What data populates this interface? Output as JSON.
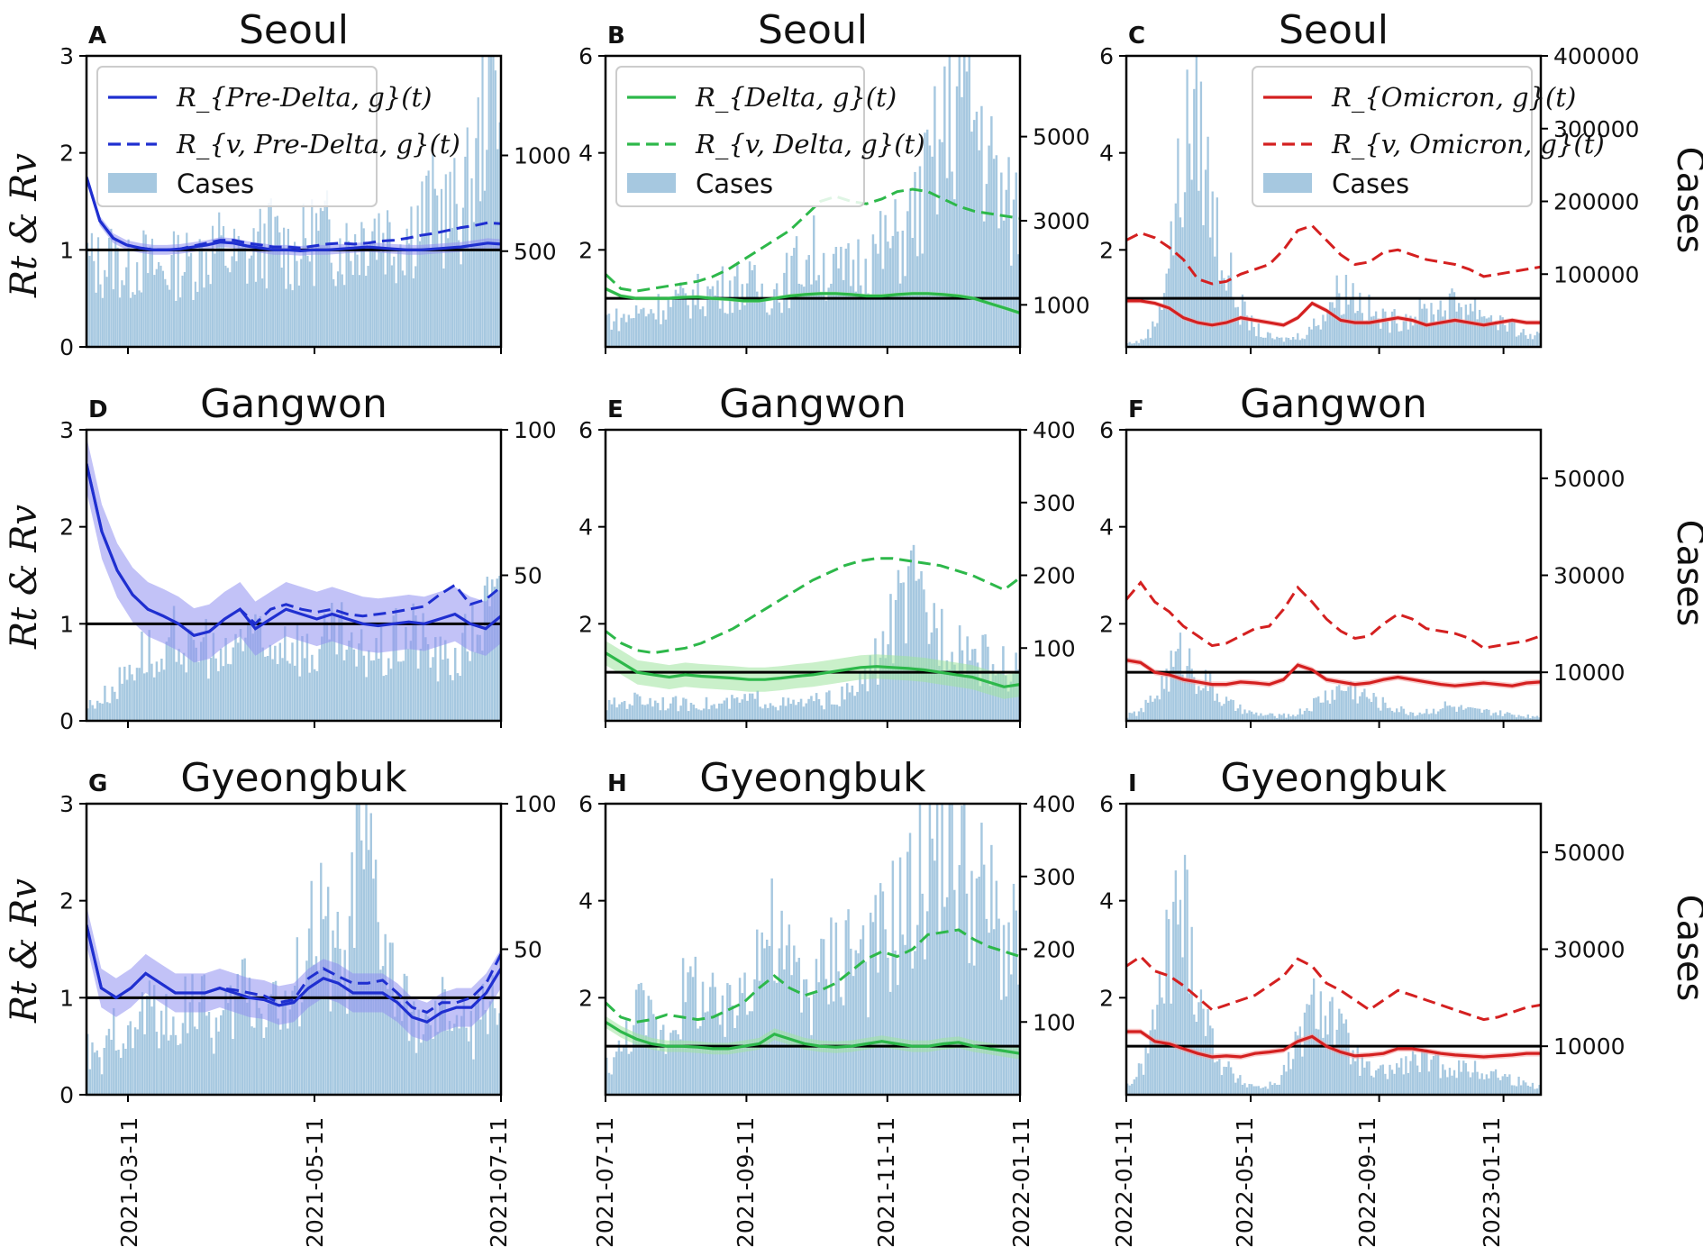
{
  "figure": {
    "ylabel_left": "Rt & Rv",
    "ylabel_right": "Cases",
    "date_labels_rows": [
      "2021-03-11",
      "2021-05-11",
      "2021-07-11",
      "2021-07-11",
      "2021-09-11",
      "2021-11-11",
      "2022-01-11",
      "2022-01-11",
      "2022-05-11",
      "2022-09-11",
      "2023-01-11"
    ]
  },
  "legend": {
    "predelta": {
      "r": "R_{Pre-Delta, g}(t)",
      "rv": "R_{v, Pre-Delta, g}(t)",
      "cases": "Cases"
    },
    "delta": {
      "r": "R_{Delta, g}(t)",
      "rv": "R_{v, Delta, g}(t)",
      "cases": "Cases"
    },
    "omicron": {
      "r": "R_{Omicron, g}(t)",
      "rv": "R_{v, Omicron, g}(t)",
      "cases": "Cases"
    }
  },
  "colors": {
    "predelta": "#1f2fd0",
    "delta": "#2db84a",
    "omicron": "#d42020",
    "cases": "#a6c8e0",
    "ci_predelta": "#8f8ff0",
    "ci_delta": "#9fe39f",
    "ci_omicron": "#f4a0a0"
  },
  "chart_data": [
    {
      "id": "A",
      "title": "Seoul",
      "type": "line+bar",
      "variant": "predelta",
      "ylim": [
        0,
        3
      ],
      "yticks": [
        0,
        1,
        2,
        3
      ],
      "y2ticks": [
        500,
        1000
      ],
      "y2lim": [
        0,
        1520
      ],
      "r": [
        1.75,
        1.3,
        1.12,
        1.05,
        1.02,
        1.0,
        1.0,
        1.01,
        1.03,
        1.05,
        1.08,
        1.07,
        1.04,
        1.02,
        1.0,
        1.0,
        0.99,
        1.0,
        1.0,
        1.01,
        1.02,
        1.03,
        1.02,
        1.01,
        1.0,
        1.0,
        1.01,
        1.02,
        1.03,
        1.05,
        1.07,
        1.06
      ],
      "rv": [
        1.75,
        1.3,
        1.12,
        1.05,
        1.02,
        1.0,
        1.0,
        1.01,
        1.04,
        1.07,
        1.1,
        1.1,
        1.07,
        1.05,
        1.03,
        1.03,
        1.02,
        1.04,
        1.06,
        1.07,
        1.06,
        1.07,
        1.09,
        1.1,
        1.12,
        1.15,
        1.17,
        1.2,
        1.23,
        1.25,
        1.28,
        1.27
      ],
      "ci": 0.05,
      "cases": [
        450,
        420,
        470,
        380,
        460,
        410,
        390,
        440,
        430,
        480,
        520,
        470,
        440,
        500,
        560,
        520,
        480,
        540,
        600,
        560,
        520,
        580,
        640,
        600,
        560,
        620,
        690,
        720,
        680,
        740,
        900,
        1600
      ]
    },
    {
      "id": "B",
      "title": "Seoul",
      "type": "line+bar",
      "variant": "delta",
      "ylim": [
        0,
        6
      ],
      "yticks": [
        2,
        4,
        6
      ],
      "y2ticks": [
        1000,
        3000,
        5000
      ],
      "y2lim": [
        0,
        6920
      ],
      "r": [
        1.2,
        1.05,
        1.0,
        1.0,
        1.0,
        1.02,
        1.03,
        1.0,
        0.98,
        0.95,
        0.95,
        1.0,
        1.05,
        1.08,
        1.1,
        1.1,
        1.08,
        1.05,
        1.05,
        1.08,
        1.1,
        1.1,
        1.08,
        1.05,
        1.0,
        0.9,
        0.8,
        0.7
      ],
      "rv": [
        1.5,
        1.2,
        1.15,
        1.2,
        1.25,
        1.3,
        1.35,
        1.45,
        1.6,
        1.8,
        2.0,
        2.2,
        2.4,
        2.7,
        3.0,
        3.1,
        3.0,
        2.95,
        3.05,
        3.2,
        3.25,
        3.2,
        3.05,
        2.9,
        2.8,
        2.75,
        2.7,
        2.65
      ],
      "ci": 0.04,
      "cases": [
        700,
        650,
        800,
        900,
        1000,
        1100,
        1200,
        1300,
        1400,
        1500,
        1400,
        1300,
        1500,
        2000,
        2200,
        1800,
        1700,
        2000,
        2200,
        2400,
        2600,
        3200,
        4200,
        5200,
        6200,
        5400,
        4200,
        3200
      ]
    },
    {
      "id": "C",
      "title": "Seoul",
      "type": "line+bar",
      "variant": "omicron",
      "ylim": [
        0,
        6
      ],
      "yticks": [
        2,
        4,
        6
      ],
      "y2ticks": [
        100000,
        200000,
        300000,
        400000
      ],
      "y2lim": [
        0,
        400000
      ],
      "r": [
        0.95,
        0.95,
        0.9,
        0.8,
        0.6,
        0.5,
        0.45,
        0.5,
        0.6,
        0.55,
        0.5,
        0.45,
        0.6,
        0.9,
        0.75,
        0.55,
        0.5,
        0.5,
        0.55,
        0.6,
        0.55,
        0.45,
        0.5,
        0.55,
        0.5,
        0.45,
        0.5,
        0.55,
        0.5,
        0.5
      ],
      "rv": [
        2.2,
        2.35,
        2.25,
        2.05,
        1.8,
        1.4,
        1.3,
        1.35,
        1.5,
        1.6,
        1.7,
        2.0,
        2.4,
        2.5,
        2.2,
        1.9,
        1.7,
        1.75,
        1.95,
        2.0,
        1.9,
        1.8,
        1.75,
        1.7,
        1.6,
        1.45,
        1.5,
        1.55,
        1.6,
        1.65
      ],
      "ci": 0.05,
      "cases": [
        5000,
        8000,
        30000,
        120000,
        250000,
        340000,
        200000,
        120000,
        60000,
        30000,
        15000,
        10000,
        12000,
        20000,
        40000,
        70000,
        80000,
        60000,
        40000,
        35000,
        40000,
        45000,
        50000,
        55000,
        60000,
        55000,
        45000,
        35000,
        25000,
        15000
      ]
    },
    {
      "id": "D",
      "title": "Gangwon",
      "type": "line+bar",
      "variant": "predelta",
      "ylim": [
        0,
        3
      ],
      "yticks": [
        0,
        1,
        2,
        3
      ],
      "y2ticks": [
        50,
        100
      ],
      "y2lim": [
        0,
        100
      ],
      "r": [
        2.65,
        1.95,
        1.55,
        1.3,
        1.15,
        1.08,
        1.0,
        0.88,
        0.92,
        1.05,
        1.15,
        0.95,
        1.05,
        1.15,
        1.1,
        1.05,
        1.1,
        1.05,
        1.0,
        0.98,
        1.0,
        1.02,
        1.0,
        1.05,
        1.1,
        1.0,
        0.95,
        1.08
      ],
      "rv": [
        2.65,
        1.95,
        1.55,
        1.3,
        1.15,
        1.08,
        1.0,
        0.88,
        0.92,
        1.05,
        1.15,
        1.0,
        1.15,
        1.2,
        1.15,
        1.12,
        1.15,
        1.1,
        1.08,
        1.1,
        1.12,
        1.15,
        1.18,
        1.3,
        1.4,
        1.2,
        1.25,
        1.38
      ],
      "ci": 0.28,
      "cases": [
        5,
        8,
        12,
        20,
        25,
        15,
        30,
        22,
        28,
        18,
        25,
        35,
        20,
        30,
        28,
        22,
        26,
        30,
        20,
        25,
        22,
        28,
        30,
        25,
        20,
        22,
        30,
        38
      ]
    },
    {
      "id": "E",
      "title": "Gangwon",
      "type": "line+bar",
      "variant": "delta",
      "ylim": [
        0,
        6
      ],
      "yticks": [
        2,
        4,
        6
      ],
      "y2ticks": [
        100,
        200,
        300,
        400
      ],
      "y2lim": [
        0,
        400
      ],
      "r": [
        1.4,
        1.2,
        1.0,
        0.95,
        0.9,
        0.95,
        0.92,
        0.9,
        0.88,
        0.85,
        0.85,
        0.88,
        0.92,
        0.95,
        1.0,
        1.05,
        1.1,
        1.12,
        1.1,
        1.08,
        1.05,
        1.0,
        0.95,
        0.9,
        0.8,
        0.7,
        0.75
      ],
      "rv": [
        1.85,
        1.6,
        1.45,
        1.4,
        1.45,
        1.5,
        1.6,
        1.75,
        1.9,
        2.1,
        2.3,
        2.5,
        2.7,
        2.9,
        3.05,
        3.2,
        3.3,
        3.35,
        3.35,
        3.3,
        3.25,
        3.2,
        3.1,
        3.0,
        2.85,
        2.7,
        2.95
      ],
      "ci": 0.25,
      "cases": [
        20,
        25,
        30,
        28,
        25,
        22,
        26,
        20,
        24,
        28,
        30,
        25,
        22,
        25,
        28,
        30,
        40,
        60,
        100,
        150,
        170,
        140,
        120,
        110,
        90,
        80,
        70
      ]
    },
    {
      "id": "F",
      "title": "Gangwon",
      "type": "line+bar",
      "variant": "omicron",
      "ylim": [
        0,
        6
      ],
      "yticks": [
        2,
        4,
        6
      ],
      "y2ticks": [
        10000,
        30000,
        50000
      ],
      "y2lim": [
        0,
        60000
      ],
      "r": [
        1.25,
        1.2,
        1.0,
        0.95,
        0.85,
        0.8,
        0.75,
        0.75,
        0.8,
        0.78,
        0.75,
        0.85,
        1.15,
        1.05,
        0.85,
        0.8,
        0.75,
        0.78,
        0.85,
        0.9,
        0.85,
        0.8,
        0.75,
        0.72,
        0.75,
        0.78,
        0.75,
        0.72,
        0.78,
        0.8
      ],
      "rv": [
        2.5,
        2.85,
        2.45,
        2.25,
        1.95,
        1.75,
        1.55,
        1.6,
        1.75,
        1.9,
        1.95,
        2.3,
        2.75,
        2.45,
        2.1,
        1.85,
        1.7,
        1.75,
        2.0,
        2.2,
        2.1,
        1.9,
        1.85,
        1.8,
        1.7,
        1.5,
        1.55,
        1.6,
        1.65,
        1.75
      ],
      "ci": 0.06,
      "cases": [
        1000,
        2000,
        5000,
        10000,
        14000,
        10000,
        7000,
        4000,
        2500,
        1500,
        1200,
        1000,
        1200,
        2500,
        4500,
        6000,
        7000,
        5500,
        4000,
        3000,
        2000,
        1500,
        2200,
        3000,
        2500,
        2000,
        1800,
        1500,
        1200,
        1000
      ]
    },
    {
      "id": "G",
      "title": "Gyeongbuk",
      "type": "line+bar",
      "variant": "predelta",
      "ylim": [
        0,
        3
      ],
      "yticks": [
        0,
        1,
        2,
        3
      ],
      "y2ticks": [
        50,
        100
      ],
      "y2lim": [
        0,
        100
      ],
      "r": [
        1.75,
        1.1,
        1.0,
        1.1,
        1.25,
        1.15,
        1.05,
        1.05,
        1.05,
        1.1,
        1.05,
        1.0,
        0.98,
        0.92,
        0.95,
        1.1,
        1.2,
        1.15,
        1.05,
        1.05,
        1.05,
        0.95,
        0.8,
        0.75,
        0.85,
        0.9,
        0.9,
        1.05,
        1.3
      ],
      "rv": [
        1.75,
        1.1,
        1.0,
        1.1,
        1.25,
        1.15,
        1.05,
        1.05,
        1.05,
        1.1,
        1.08,
        1.05,
        1.02,
        0.95,
        0.98,
        1.2,
        1.3,
        1.22,
        1.15,
        1.15,
        1.18,
        1.05,
        0.9,
        0.85,
        0.95,
        0.95,
        1.0,
        1.15,
        1.45
      ],
      "ci": 0.2,
      "cases": [
        15,
        10,
        25,
        18,
        30,
        28,
        20,
        35,
        30,
        22,
        28,
        40,
        30,
        35,
        25,
        45,
        60,
        50,
        40,
        80,
        70,
        45,
        30,
        25,
        20,
        30,
        25,
        20,
        35
      ]
    },
    {
      "id": "H",
      "title": "Gyeongbuk",
      "type": "line+bar",
      "variant": "delta",
      "ylim": [
        0,
        6
      ],
      "yticks": [
        2,
        4,
        6
      ],
      "y2ticks": [
        100,
        200,
        300,
        400
      ],
      "y2lim": [
        0,
        400
      ],
      "r": [
        1.5,
        1.3,
        1.15,
        1.05,
        1.0,
        1.0,
        0.98,
        0.95,
        0.95,
        1.0,
        1.05,
        1.25,
        1.15,
        1.05,
        1.0,
        0.98,
        1.0,
        1.05,
        1.1,
        1.05,
        1.0,
        1.0,
        1.05,
        1.08,
        1.0,
        0.95,
        0.9,
        0.85
      ],
      "rv": [
        1.9,
        1.6,
        1.5,
        1.55,
        1.65,
        1.6,
        1.55,
        1.6,
        1.75,
        1.9,
        2.2,
        2.45,
        2.2,
        2.05,
        2.15,
        2.3,
        2.55,
        2.8,
        2.95,
        2.85,
        3.0,
        3.3,
        3.35,
        3.4,
        3.2,
        3.05,
        2.95,
        2.85
      ],
      "ci": 0.12,
      "cases": [
        40,
        60,
        120,
        100,
        80,
        130,
        150,
        120,
        100,
        140,
        200,
        220,
        180,
        160,
        140,
        180,
        210,
        200,
        190,
        230,
        250,
        280,
        360,
        380,
        320,
        280,
        250,
        200
      ]
    },
    {
      "id": "I",
      "title": "Gyeongbuk",
      "type": "line+bar",
      "variant": "omicron",
      "ylim": [
        0,
        6
      ],
      "yticks": [
        2,
        4,
        6
      ],
      "y2ticks": [
        10000,
        30000,
        50000
      ],
      "y2lim": [
        0,
        60000
      ],
      "r": [
        1.3,
        1.3,
        1.1,
        1.05,
        0.95,
        0.85,
        0.78,
        0.8,
        0.78,
        0.85,
        0.88,
        0.92,
        1.1,
        1.2,
        1.0,
        0.88,
        0.8,
        0.82,
        0.85,
        0.95,
        0.95,
        0.9,
        0.85,
        0.82,
        0.8,
        0.78,
        0.8,
        0.82,
        0.85,
        0.85
      ],
      "rv": [
        2.65,
        2.85,
        2.55,
        2.45,
        2.25,
        2.0,
        1.75,
        1.85,
        1.95,
        2.05,
        2.25,
        2.45,
        2.8,
        2.65,
        2.3,
        2.15,
        1.95,
        1.75,
        1.95,
        2.15,
        2.05,
        1.95,
        1.85,
        1.75,
        1.65,
        1.55,
        1.6,
        1.7,
        1.8,
        1.85
      ],
      "ci": 0.06,
      "cases": [
        2000,
        5000,
        15000,
        30000,
        40000,
        25000,
        12000,
        6000,
        3000,
        2000,
        1500,
        3000,
        8000,
        15000,
        20000,
        15000,
        10000,
        6000,
        4000,
        5000,
        6000,
        7000,
        6500,
        6000,
        5500,
        5000,
        4500,
        4000,
        3000,
        2000
      ]
    }
  ]
}
